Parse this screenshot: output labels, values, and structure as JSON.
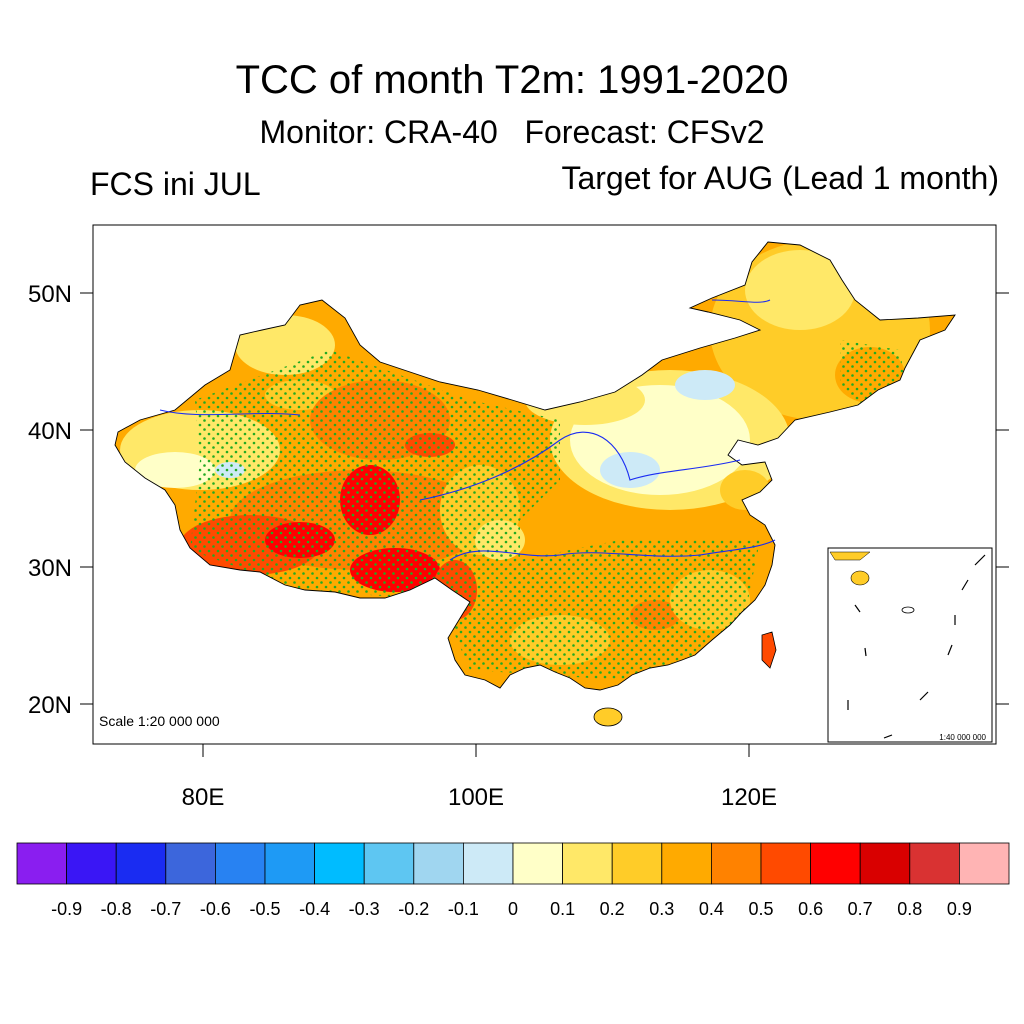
{
  "title": "TCC of month T2m: 1991-2020",
  "subtitle": "Monitor: CRA-40   Forecast: CFSv2",
  "left_label": "FCS ini JUL",
  "right_label": "Target for AUG (Lead 1 month)",
  "scale_main": "Scale 1:20 000 000",
  "scale_inset": "1:40 000 000",
  "axes": {
    "lat_ticks": [
      "50N",
      "40N",
      "30N",
      "20N"
    ],
    "lon_ticks": [
      "80E",
      "100E",
      "120E"
    ]
  },
  "colorbar": {
    "colors": [
      "#8a1ef0",
      "#3a16f5",
      "#1a2cf2",
      "#3c66dc",
      "#2882f2",
      "#1e9af5",
      "#00bcff",
      "#5ec6f2",
      "#a0d6f0",
      "#cdeaf7",
      "#ffffc8",
      "#ffe868",
      "#ffcc28",
      "#ffaa00",
      "#ff8200",
      "#ff4a00",
      "#ff0000",
      "#d90000",
      "#d93232",
      "#ffb4b4"
    ],
    "labels": [
      "-0.9",
      "-0.8",
      "-0.7",
      "-0.6",
      "-0.5",
      "-0.4",
      "-0.3",
      "-0.2",
      "-0.1",
      "0",
      "0.1",
      "0.2",
      "0.3",
      "0.4",
      "0.5",
      "0.6",
      "0.7",
      "0.8",
      "0.9"
    ]
  }
}
